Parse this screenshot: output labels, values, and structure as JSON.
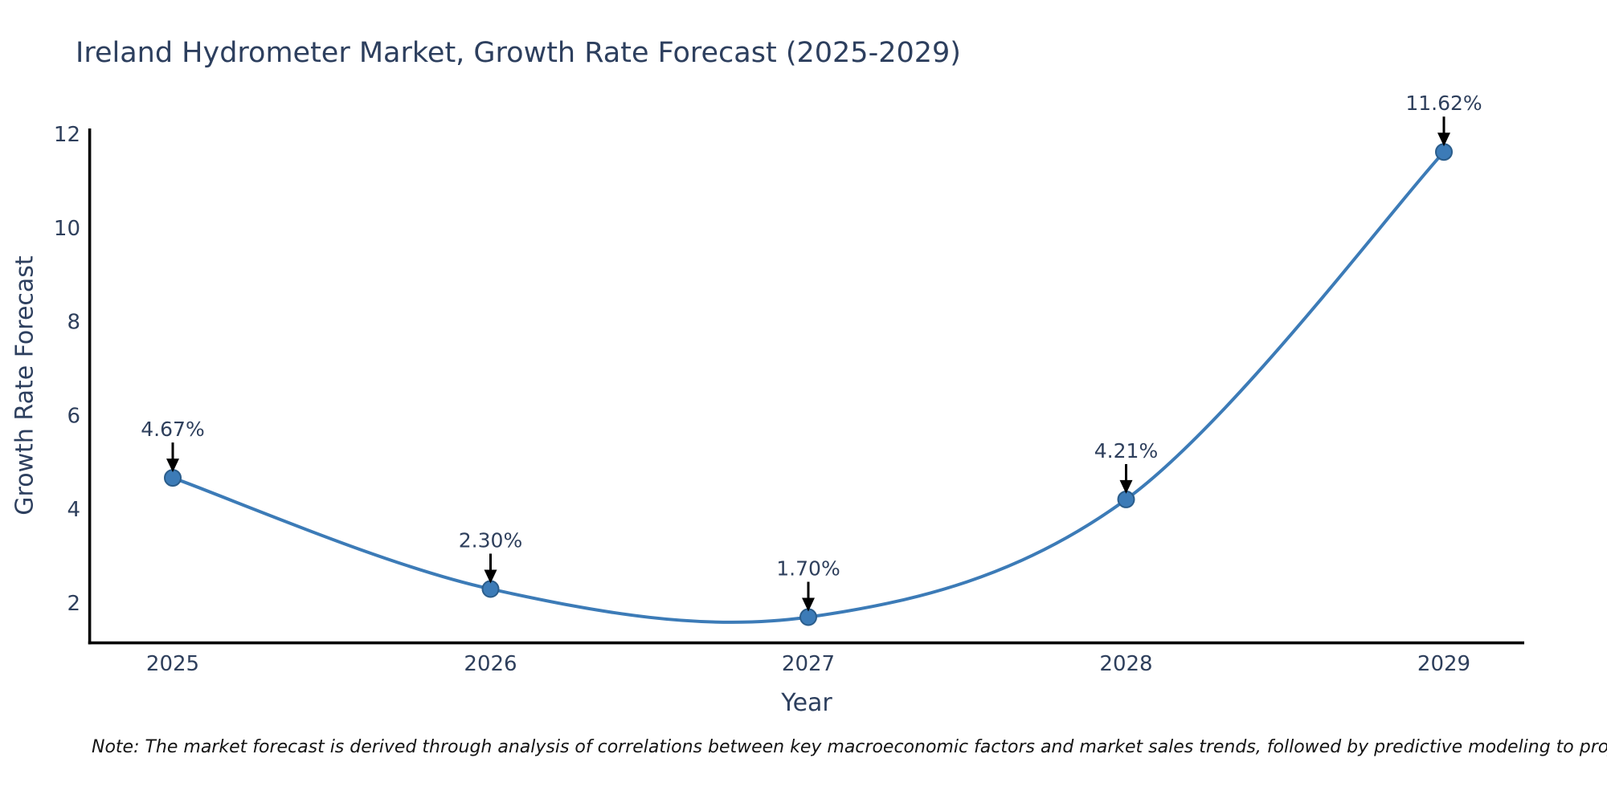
{
  "note": "Note: The market forecast is derived through analysis of correlations between key macroeconomic factors and market sales trends, followed by predictive modeling to project future sales.",
  "chart_data": {
    "type": "line",
    "title": "Ireland Hydrometer Market, Growth Rate Forecast (2025-2029)",
    "xlabel": "Year",
    "ylabel": "Growth Rate Forecast",
    "x": [
      2025,
      2026,
      2027,
      2028,
      2029
    ],
    "values": [
      4.67,
      2.3,
      1.7,
      4.21,
      11.62
    ],
    "labels": [
      "4.67%",
      "2.30%",
      "1.70%",
      "4.21%",
      "11.62%"
    ],
    "yticks": [
      2,
      4,
      6,
      8,
      10,
      12
    ],
    "ylim": [
      1.1,
      12.2
    ],
    "line_shape": "spline",
    "markers": true,
    "grid": false,
    "legend": "none",
    "annotations_have_arrows": true,
    "colors": {
      "line": "#3c7bb7",
      "marker": "#3c7bb7",
      "marker_edge": "#2b5d8b",
      "axis": "#000000",
      "tick_text": "#2e3f5c",
      "title_text": "#2d3f5e",
      "annotation_text": "#2e3f5c",
      "annotation_arrow": "#000000",
      "note_text": "#141414",
      "background": "#ffffff"
    }
  }
}
